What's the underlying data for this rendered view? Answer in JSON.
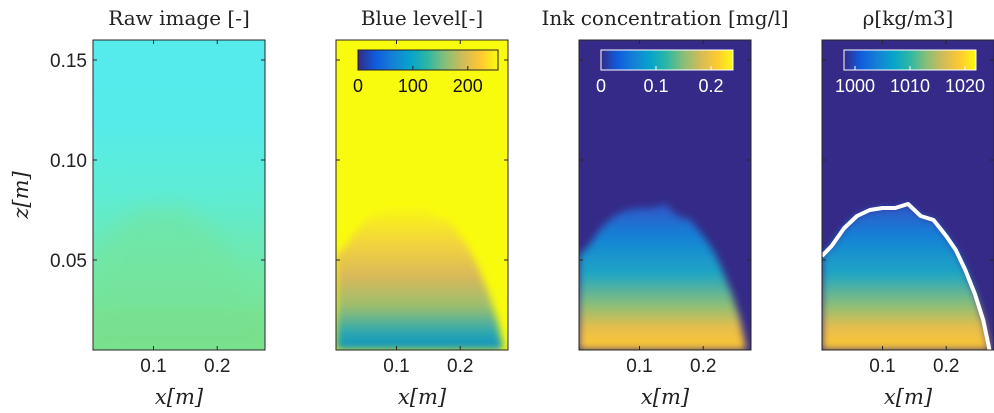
{
  "figure": {
    "x_label": "x[m]",
    "y_label": "z[m]"
  },
  "colors": {
    "parula_stops": [
      "#352a87",
      "#0f5cdd",
      "#1481d6",
      "#06a4ca",
      "#2eb7a4",
      "#87bf77",
      "#d1bb59",
      "#fec832",
      "#f9fb0e"
    ],
    "raw_stops": [
      "#7be08a",
      "#72e8a8",
      "#5eecd4",
      "#55ebea",
      "#55eaec"
    ],
    "contour": "#ffffff"
  },
  "chart_data": [
    {
      "type": "heatmap",
      "title": "Raw image [-]",
      "xlabel": "x[m]",
      "ylabel": "z[m]",
      "x_range": [
        0.005,
        0.275
      ],
      "y_range": [
        0.005,
        0.16
      ],
      "x_ticks": [
        {
          "v": 0.1,
          "label": "0.1"
        },
        {
          "v": 0.2,
          "label": "0.2"
        }
      ],
      "y_ticks": [
        {
          "v": 0.05,
          "label": "0.05"
        },
        {
          "v": 0.1,
          "label": "0.10"
        },
        {
          "v": 0.15,
          "label": "0.15"
        }
      ],
      "colormap": "raw",
      "colorbar": null
    },
    {
      "type": "heatmap",
      "title": "Blue level[-]",
      "xlabel": "x[m]",
      "ylabel": "",
      "x_range": [
        0.005,
        0.275
      ],
      "y_range": [
        0.005,
        0.16
      ],
      "x_ticks": [
        {
          "v": 0.1,
          "label": "0.1"
        },
        {
          "v": 0.2,
          "label": "0.2"
        }
      ],
      "y_ticks": [],
      "colormap": "parula",
      "colorbar": {
        "range": [
          0,
          255
        ],
        "ticks": [
          {
            "v": 0,
            "label": "0"
          },
          {
            "v": 100,
            "label": "100"
          },
          {
            "v": 200,
            "label": "200"
          }
        ],
        "label_color": "#111111",
        "frame_color": "#222222"
      }
    },
    {
      "type": "heatmap",
      "title": "Ink concentration [mg/l]",
      "xlabel": "x[m]",
      "ylabel": "",
      "x_range": [
        0.005,
        0.275
      ],
      "y_range": [
        0.005,
        0.16
      ],
      "x_ticks": [
        {
          "v": 0.1,
          "label": "0.1"
        },
        {
          "v": 0.2,
          "label": "0.2"
        }
      ],
      "y_ticks": [],
      "colormap": "parula",
      "colorbar": {
        "range": [
          0,
          0.24
        ],
        "ticks": [
          {
            "v": 0,
            "label": "0"
          },
          {
            "v": 0.1,
            "label": "0.1"
          },
          {
            "v": 0.2,
            "label": "0.2"
          }
        ],
        "label_color": "#ffffff",
        "frame_color": "#ffffff"
      }
    },
    {
      "type": "heatmap",
      "title": "ρ[kg/m3]",
      "xlabel": "x[m]",
      "ylabel": "",
      "x_range": [
        0.005,
        0.275
      ],
      "y_range": [
        0.005,
        0.16
      ],
      "x_ticks": [
        {
          "v": 0.1,
          "label": "0.1"
        },
        {
          "v": 0.2,
          "label": "0.2"
        }
      ],
      "y_ticks": [],
      "colormap": "parula",
      "colorbar": {
        "range": [
          998,
          1022
        ],
        "ticks": [
          {
            "v": 1000,
            "label": "1000"
          },
          {
            "v": 1010,
            "label": "1010"
          },
          {
            "v": 1020,
            "label": "1020"
          }
        ],
        "label_color": "#ffffff",
        "frame_color": "#ffffff"
      }
    }
  ]
}
